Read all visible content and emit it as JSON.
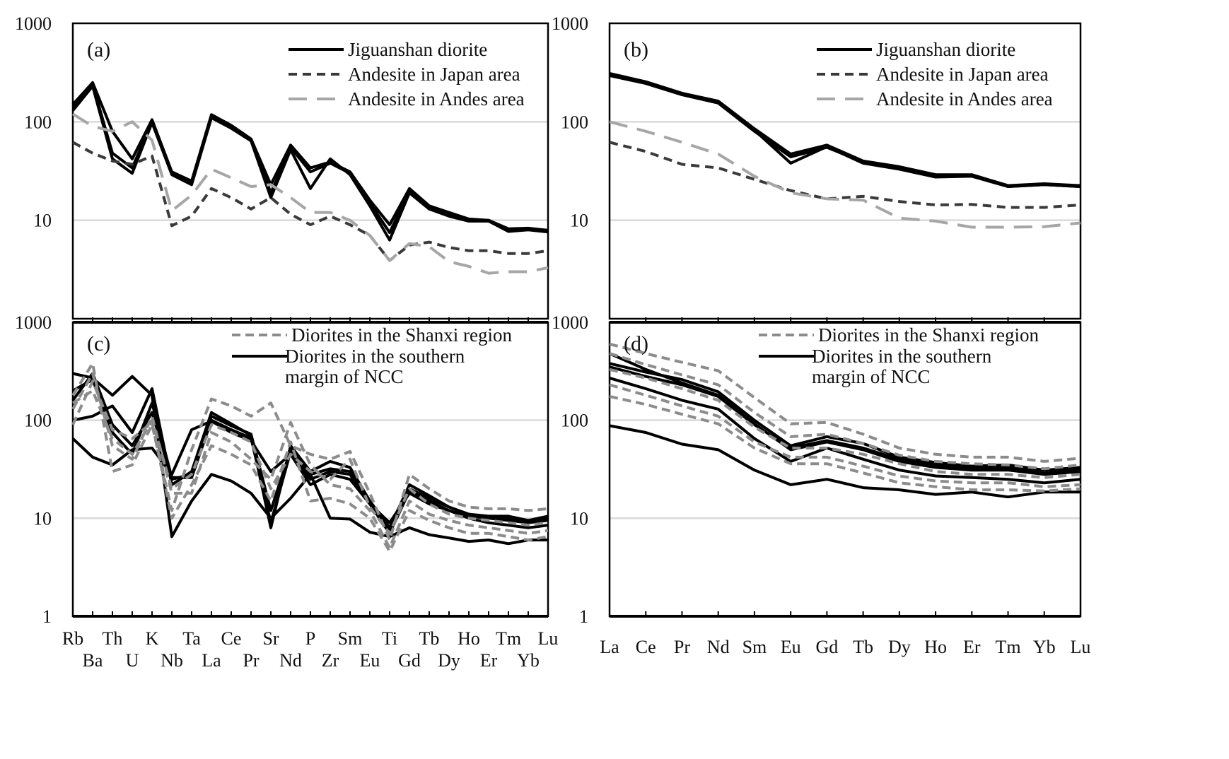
{
  "chart_data": [
    {
      "id": "a",
      "type": "line",
      "panel_label": "(a)",
      "yscale": "log",
      "ylim": [
        1,
        1000
      ],
      "yticks": [
        "1000",
        "100",
        "10"
      ],
      "grid": true,
      "legend_position": "top-right",
      "categories": [
        "Rb",
        "Ba",
        "Th",
        "U",
        "K",
        "Nb",
        "Ta",
        "La",
        "Ce",
        "Pr",
        "Sr",
        "Nd",
        "P",
        "Zr",
        "Sm",
        "Eu",
        "Ti",
        "Gd",
        "Tb",
        "Dy",
        "Ho",
        "Er",
        "Tm",
        "Yb",
        "Lu"
      ],
      "legend": [
        {
          "label": "Jiguanshan diorite",
          "style": "solid-black"
        },
        {
          "label": "Andesite in Japan area",
          "style": "dash-dark"
        },
        {
          "label": "Andesite in Andes area",
          "style": "longdash-gray"
        }
      ],
      "series": [
        {
          "name": "Jiguanshan diorite",
          "style": "solid-black",
          "values": [
            150,
            250,
            80,
            42,
            105,
            31,
            25,
            118,
            92,
            67,
            23,
            58,
            34,
            39,
            31,
            16,
            9,
            21,
            14,
            12,
            10.3,
            10,
            8.2,
            8.3,
            7.9
          ]
        },
        {
          "name": "Jiguanshan diorite",
          "style": "solid-black",
          "values": [
            140,
            240,
            48,
            34,
            100,
            30,
            24,
            112,
            88,
            65,
            19,
            55,
            31,
            38,
            30,
            15,
            7.5,
            20,
            13.5,
            11.5,
            10,
            10,
            7.9,
            8.1,
            7.7
          ]
        },
        {
          "name": "Jiguanshan diorite",
          "style": "solid-black",
          "values": [
            130,
            230,
            42,
            30,
            98,
            29,
            23,
            110,
            86,
            64,
            17,
            52,
            21,
            42,
            29,
            14,
            6.3,
            19,
            13,
            11,
            9.8,
            9.8,
            7.7,
            8,
            7.6
          ]
        },
        {
          "name": "Andesite in Japan area",
          "style": "dash-dark",
          "values": [
            62,
            48,
            40,
            37,
            45,
            8.8,
            11,
            21,
            17,
            13,
            17,
            11.5,
            9,
            11,
            9,
            7,
            3.9,
            5.6,
            6,
            5.3,
            4.9,
            4.9,
            4.6,
            4.6,
            4.9
          ]
        },
        {
          "name": "Andesite in Andes area",
          "style": "longdash-gray",
          "values": [
            120,
            90,
            80,
            100,
            65,
            12.5,
            18,
            33,
            27,
            22,
            23,
            17,
            12,
            12,
            10,
            7,
            3.9,
            5.8,
            5.4,
            3.8,
            3.4,
            2.9,
            3,
            3,
            3.3
          ]
        }
      ]
    },
    {
      "id": "b",
      "type": "line",
      "panel_label": "(b)",
      "yscale": "log",
      "ylim": [
        1,
        1000
      ],
      "yticks": [
        "1000",
        "100",
        "10"
      ],
      "grid": true,
      "legend_position": "top-right",
      "categories": [
        "La",
        "Ce",
        "Pr",
        "Nd",
        "Sm",
        "Eu",
        "Gd",
        "Tb",
        "Dy",
        "Ho",
        "Er",
        "Tm",
        "Yb",
        "Lu"
      ],
      "legend": [
        {
          "label": "Jiguanshan diorite",
          "style": "solid-black"
        },
        {
          "label": "Andesite in Japan area",
          "style": "dash-dark"
        },
        {
          "label": "Andesite in Andes area",
          "style": "longdash-gray"
        }
      ],
      "series": [
        {
          "name": "Jiguanshan diorite",
          "style": "solid-black",
          "values": [
            310,
            255,
            195,
            162,
            85,
            47,
            58,
            40,
            35,
            29,
            29,
            22.5,
            23.5,
            22.5
          ]
        },
        {
          "name": "Jiguanshan diorite",
          "style": "solid-black",
          "values": [
            300,
            250,
            190,
            158,
            82,
            38,
            56,
            38,
            33,
            27.5,
            28,
            22,
            23,
            22
          ]
        },
        {
          "name": "Jiguanshan diorite",
          "style": "solid-black",
          "values": [
            295,
            245,
            188,
            155,
            80,
            44,
            55,
            39,
            34,
            28,
            28.5,
            22,
            23,
            22
          ]
        },
        {
          "name": "Andesite in Japan area",
          "style": "dash-dark",
          "values": [
            62,
            50,
            37,
            34,
            26,
            20,
            16.5,
            17.5,
            15.5,
            14.3,
            14.5,
            13.5,
            13.5,
            14.3
          ]
        },
        {
          "name": "Andesite in Andes area",
          "style": "longdash-gray",
          "values": [
            100,
            80,
            62,
            47,
            28,
            19,
            16.5,
            16,
            10.5,
            9.8,
            8.5,
            8.5,
            8.6,
            9.4
          ]
        }
      ]
    },
    {
      "id": "c",
      "type": "line",
      "panel_label": "(c)",
      "yscale": "log",
      "ylim": [
        1,
        1000
      ],
      "yticks": [
        "1000",
        "100",
        "10",
        "1"
      ],
      "grid": true,
      "legend_position": "top-right",
      "categories": [
        "Rb",
        "Ba",
        "Th",
        "U",
        "K",
        "Nb",
        "Ta",
        "La",
        "Ce",
        "Pr",
        "Sr",
        "Nd",
        "P",
        "Zr",
        "Sm",
        "Eu",
        "Ti",
        "Gd",
        "Tb",
        "Dy",
        "Ho",
        "Er",
        "Tm",
        "Yb",
        "Lu"
      ],
      "legend": [
        {
          "label": "Diorites in the Shanxi region",
          "style": "dash-gray"
        },
        {
          "label": "Diorites in the southern margin of NCC",
          "style": "solid-black"
        }
      ],
      "series": [
        {
          "name": "Diorites in the southern margin of NCC",
          "style": "solid-black",
          "values": [
            300,
            270,
            180,
            280,
            180,
            6.5,
            15,
            28,
            24,
            18,
            10,
            16,
            28,
            10,
            9.8,
            7.2,
            6.5,
            8,
            6.8,
            6.3,
            5.8,
            6,
            5.5,
            6,
            6
          ]
        },
        {
          "name": "Diorites in the southern margin of NCC",
          "style": "solid-black",
          "values": [
            65,
            42,
            35,
            50,
            52,
            28,
            80,
            98,
            75,
            62,
            30,
            45,
            22,
            28,
            25,
            14,
            9,
            18,
            14,
            12,
            10,
            9,
            8.5,
            8,
            8.5
          ]
        },
        {
          "name": "Diorites in the southern margin of NCC",
          "style": "solid-black",
          "values": [
            100,
            110,
            140,
            75,
            210,
            22,
            30,
            120,
            92,
            70,
            8,
            55,
            30,
            38,
            33,
            15,
            8,
            22,
            17,
            13,
            11,
            10,
            10,
            9,
            10
          ]
        },
        {
          "name": "Diorites in the southern margin of NCC",
          "style": "solid-black",
          "values": [
            160,
            300,
            90,
            55,
            120,
            25,
            28,
            110,
            88,
            72,
            12,
            50,
            28,
            32,
            30,
            15,
            7.5,
            20,
            16,
            13,
            11,
            10.5,
            10.5,
            9.5,
            10.5
          ]
        },
        {
          "name": "Diorites in the southern margin of NCC",
          "style": "solid-black",
          "values": [
            200,
            260,
            75,
            45,
            150,
            26,
            26,
            100,
            80,
            66,
            9,
            48,
            25,
            30,
            28,
            14,
            7,
            19,
            15,
            12,
            10.5,
            10,
            9.5,
            9,
            9.5
          ]
        },
        {
          "name": "Diorites in the shanxi region",
          "style": "dash-gray",
          "values": [
            180,
            380,
            30,
            35,
            90,
            12,
            50,
            165,
            140,
            110,
            150,
            55,
            45,
            40,
            48,
            18,
            6,
            28,
            20,
            15,
            13,
            12.5,
            12.5,
            12,
            12.5
          ]
        },
        {
          "name": "Diorites in the Shanxi region",
          "style": "dash-gray",
          "values": [
            130,
            300,
            55,
            40,
            110,
            18,
            18,
            75,
            60,
            40,
            25,
            95,
            35,
            22,
            20,
            12,
            5,
            15,
            11,
            9.5,
            8.5,
            8,
            7.5,
            7,
            7.5
          ]
        },
        {
          "name": "Diorites in the Shanxi region",
          "style": "dash-gray",
          "values": [
            90,
            250,
            80,
            65,
            95,
            10,
            22,
            55,
            45,
            35,
            15,
            60,
            15,
            16,
            14,
            10,
            4.6,
            12,
            9.5,
            8,
            7,
            7,
            6.5,
            6,
            6.5
          ]
        },
        {
          "name": "Diorites in the Shanxi region",
          "style": "dash-gray",
          "values": [
            150,
            200,
            65,
            45,
            100,
            20,
            28,
            90,
            75,
            60,
            20,
            45,
            30,
            25,
            40,
            13,
            7,
            20,
            14,
            11,
            10,
            9.5,
            9,
            8.5,
            9
          ]
        }
      ]
    },
    {
      "id": "d",
      "type": "line",
      "panel_label": "(d)",
      "yscale": "log",
      "ylim": [
        1,
        1000
      ],
      "yticks": [
        "1000",
        "100",
        "10",
        "1"
      ],
      "grid": true,
      "legend_position": "top-right",
      "categories": [
        "La",
        "Ce",
        "Pr",
        "Nd",
        "Sm",
        "Eu",
        "Gd",
        "Tb",
        "Dy",
        "Ho",
        "Er",
        "Tm",
        "Yb",
        "Lu"
      ],
      "legend": [
        {
          "label": "Diorites in the Shanxi region",
          "style": "dash-gray"
        },
        {
          "label": "Diorites in the southern margin of NCC",
          "style": "solid-black"
        }
      ],
      "series": [
        {
          "name": "Diorites in the southern margin of NCC",
          "style": "solid-black",
          "values": [
            88,
            75,
            57,
            50,
            31,
            22,
            25,
            20.5,
            19.5,
            17.5,
            18.5,
            16.5,
            18.5,
            18.5
          ]
        },
        {
          "name": "Diorites in the southern margin of NCC",
          "style": "solid-black",
          "values": [
            270,
            210,
            160,
            130,
            65,
            38,
            52,
            40,
            31,
            27,
            26,
            25,
            23,
            25
          ]
        },
        {
          "name": "Diorites in the southern margin of NCC",
          "style": "solid-black",
          "values": [
            380,
            310,
            260,
            195,
            100,
            55,
            68,
            58,
            42,
            37,
            34,
            35,
            31,
            33
          ]
        },
        {
          "name": "Diorites in the southern margin of NCC",
          "style": "solid-black",
          "values": [
            350,
            280,
            230,
            175,
            90,
            52,
            62,
            52,
            40,
            35,
            32,
            33,
            29,
            31
          ]
        },
        {
          "name": "Diorites in the southern margin of NCC",
          "style": "solid-black",
          "values": [
            480,
            330,
            240,
            180,
            92,
            50,
            60,
            50,
            38,
            33,
            31,
            31,
            28,
            30
          ]
        },
        {
          "name": "Diorites in the Shanxi region",
          "style": "dash-gray",
          "values": [
            600,
            480,
            390,
            320,
            170,
            92,
            95,
            72,
            52,
            45,
            42,
            42,
            38,
            41
          ]
        },
        {
          "name": "Diorites in the Shanxi region",
          "style": "dash-gray",
          "values": [
            480,
            370,
            290,
            230,
            120,
            68,
            72,
            58,
            44,
            38,
            36,
            35,
            32,
            35
          ]
        },
        {
          "name": "Diorites in the Shanxi region",
          "style": "dash-gray",
          "values": [
            330,
            270,
            210,
            160,
            85,
            52,
            52,
            45,
            36,
            30,
            28,
            28,
            26,
            28
          ]
        },
        {
          "name": "Diorites in the Shanxi region",
          "style": "dash-gray",
          "values": [
            230,
            180,
            140,
            110,
            60,
            42,
            42,
            34,
            27,
            24,
            23,
            23,
            21,
            22
          ]
        },
        {
          "name": "Diorites in the Shanxi region",
          "style": "dash-gray",
          "values": [
            175,
            145,
            115,
            92,
            52,
            36,
            36,
            29,
            23,
            21,
            19.5,
            19.5,
            19,
            20
          ]
        }
      ]
    }
  ]
}
